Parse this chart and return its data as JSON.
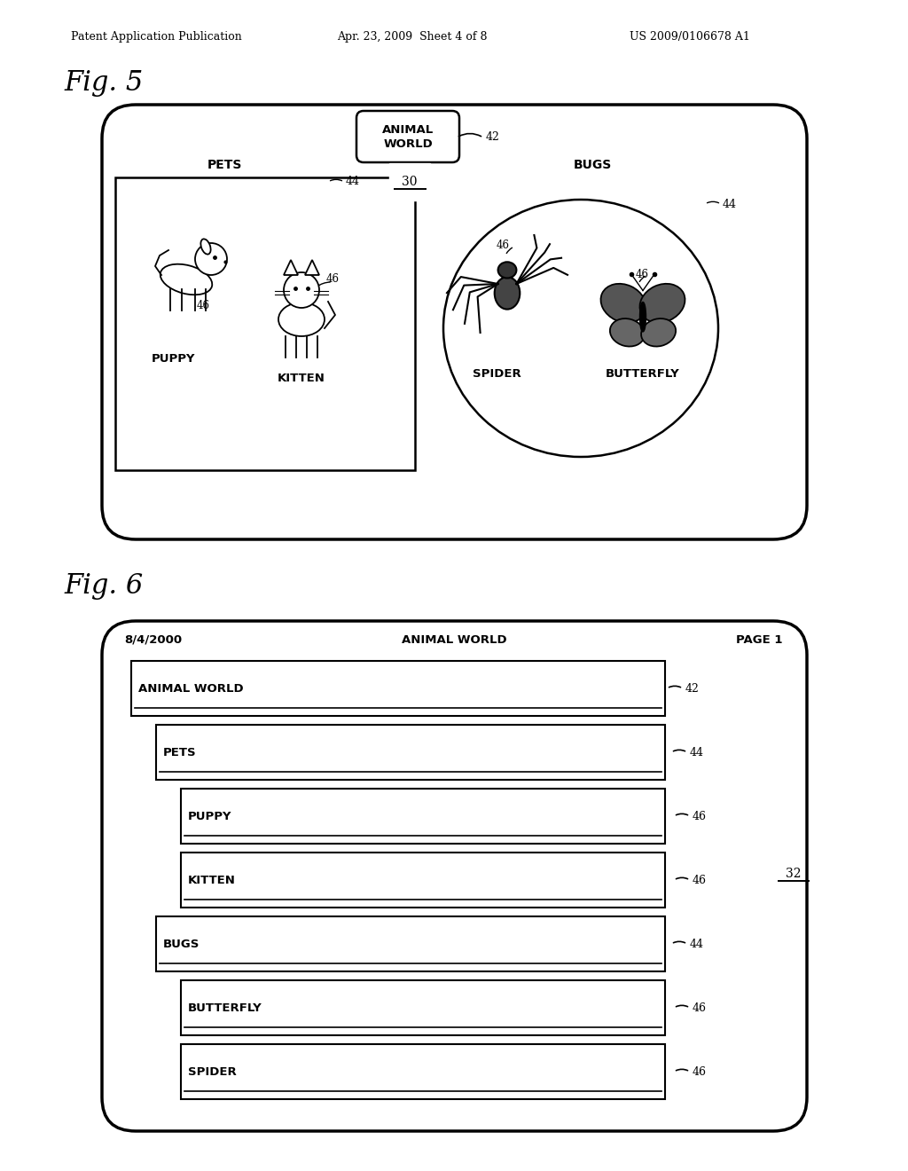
{
  "bg_color": "#ffffff",
  "header_text": "Patent Application Publication",
  "header_date": "Apr. 23, 2009  Sheet 4 of 8",
  "header_patent": "US 2009/0106678 A1",
  "fig5_label": "Fig. 5",
  "fig6_label": "Fig. 6",
  "ref42": "42",
  "ref44_a": "44",
  "ref44_b": "44",
  "ref44_c": "44",
  "ref46": "46",
  "ref30": "30",
  "ref32": "32",
  "animal_world_text": "ANIMAL\nWORLD",
  "pets_label": "PETS",
  "bugs_label": "BUGS",
  "puppy_label": "PUPPY",
  "kitten_label": "KITTEN",
  "spider_label": "SPIDER",
  "butterfly_label": "BUTTERFLY",
  "fig6_header_date": "8/4/2000",
  "fig6_header_title": "ANIMAL WORLD",
  "fig6_header_page": "PAGE 1",
  "fig6_rows": [
    {
      "label": "ANIMAL WORLD",
      "indent": 0,
      "ref": "42"
    },
    {
      "label": "PETS",
      "indent": 1,
      "ref": "44"
    },
    {
      "label": "PUPPY",
      "indent": 2,
      "ref": "46"
    },
    {
      "label": "KITTEN",
      "indent": 2,
      "ref": "46"
    },
    {
      "label": "BUGS",
      "indent": 1,
      "ref": "44"
    },
    {
      "label": "BUTTERFLY",
      "indent": 2,
      "ref": "46"
    },
    {
      "label": "SPIDER",
      "indent": 2,
      "ref": "46"
    }
  ]
}
